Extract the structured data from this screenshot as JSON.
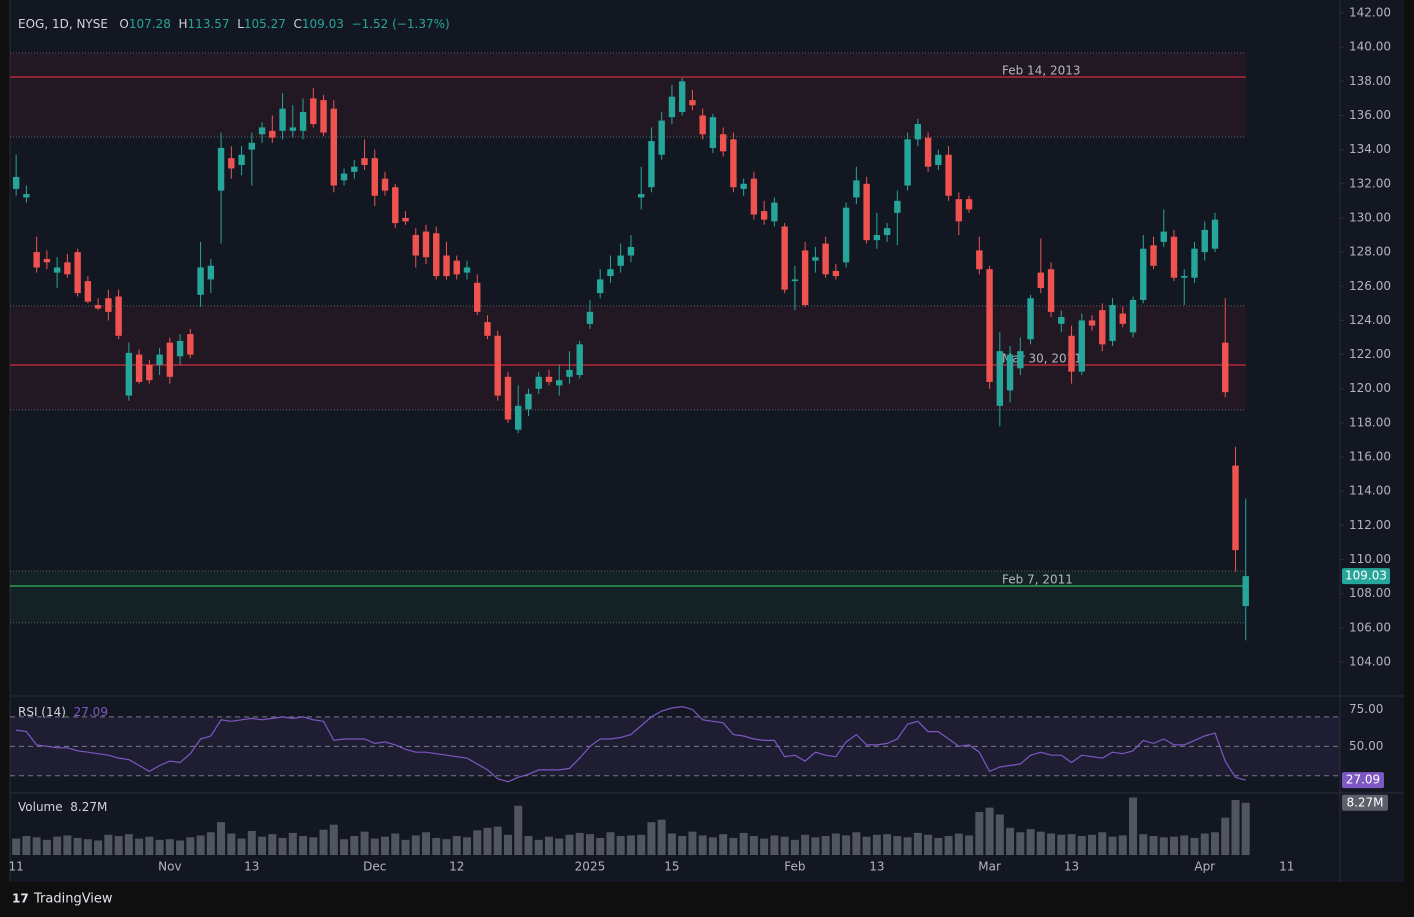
{
  "brand": "TradingView",
  "chart_data": [
    {
      "type": "candlestick",
      "title": "EOG, 1D, NYSE",
      "ohlc_labels": [
        "O",
        "H",
        "L",
        "C"
      ],
      "change": "−1.52 (−1.37%)",
      "up_color": "#26a69a",
      "down_color": "#ef5350",
      "grid": false,
      "xlim": [
        -0.6,
        129.2
      ],
      "xticks": [
        {
          "value": 0,
          "label": "11"
        },
        {
          "value": 15,
          "label": "Nov"
        },
        {
          "value": 23,
          "label": "13"
        },
        {
          "value": 35,
          "label": "Dec"
        },
        {
          "value": 43,
          "label": "12"
        },
        {
          "value": 56,
          "label": "2025"
        },
        {
          "value": 64,
          "label": "15"
        },
        {
          "value": 76,
          "label": "Feb"
        },
        {
          "value": 84,
          "label": "13"
        },
        {
          "value": 95,
          "label": "Mar"
        },
        {
          "value": 103,
          "label": "13"
        },
        {
          "value": 116,
          "label": "Apr"
        },
        {
          "value": 124,
          "label": "11"
        }
      ],
      "ylim": [
        102.07,
        142.76
      ],
      "yticks": [
        {
          "value": 104,
          "label": "104.00"
        },
        {
          "value": 106,
          "label": "106.00"
        },
        {
          "value": 108,
          "label": "108.00"
        },
        {
          "value": 110,
          "label": "110.00"
        },
        {
          "value": 112,
          "label": "112.00"
        },
        {
          "value": 114,
          "label": "114.00"
        },
        {
          "value": 116,
          "label": "116.00"
        },
        {
          "value": 118,
          "label": "118.00"
        },
        {
          "value": 120,
          "label": "120.00"
        },
        {
          "value": 122,
          "label": "122.00"
        },
        {
          "value": 124,
          "label": "124.00"
        },
        {
          "value": 126,
          "label": "126.00"
        },
        {
          "value": 128,
          "label": "128.00"
        },
        {
          "value": 130,
          "label": "130.00"
        },
        {
          "value": 132,
          "label": "132.00"
        },
        {
          "value": 134,
          "label": "134.00"
        },
        {
          "value": 136,
          "label": "136.00"
        },
        {
          "value": 138,
          "label": "138.00"
        },
        {
          "value": 140,
          "label": "140.00"
        },
        {
          "value": 142,
          "label": "142.00"
        }
      ],
      "levels": [
        {
          "label": "Feb 14, 2013",
          "value": 138.25,
          "zone": [
            134.74,
            139.66
          ],
          "color": "#b2283a"
        },
        {
          "label": "Mar 30, 2011",
          "value": 121.39,
          "zone": [
            118.76,
            124.85
          ],
          "color": "#b2283a"
        },
        {
          "label": "Feb 7, 2011",
          "value": 108.45,
          "zone": [
            106.29,
            109.33
          ],
          "color": "#2e9e4f"
        }
      ],
      "open": [
        131.7,
        131.2,
        128.0,
        127.6,
        126.8,
        127.4,
        128.0,
        126.3,
        124.9,
        125.3,
        125.4,
        119.6,
        122.0,
        121.4,
        121.4,
        122.7,
        121.9,
        123.2,
        125.5,
        126.4,
        131.6,
        133.5,
        133.1,
        134.0,
        134.9,
        135.1,
        135.1,
        135.1,
        135.1,
        137.0,
        136.9,
        136.4,
        132.2,
        132.7,
        133.5,
        133.5,
        132.3,
        131.8,
        130.0,
        129.0,
        129.2,
        129.1,
        127.8,
        127.5,
        126.8,
        126.2,
        123.9,
        123.1,
        120.7,
        117.6,
        118.8,
        120.0,
        120.7,
        120.2,
        120.7,
        120.8,
        123.8,
        125.6,
        126.6,
        127.2,
        127.8,
        131.2,
        131.8,
        133.7,
        135.9,
        136.2,
        136.9,
        136.0,
        134.1,
        134.9,
        134.6,
        131.7,
        132.3,
        130.4,
        129.8,
        129.5,
        126.3,
        128.1,
        127.5,
        128.5,
        126.9,
        127.4,
        131.2,
        132.0,
        128.7,
        129.0,
        130.3,
        131.9,
        134.6,
        134.7,
        133.1,
        133.7,
        131.1,
        131.1,
        128.1,
        127.0,
        119.0,
        119.9,
        121.2,
        122.9,
        126.8,
        127.0,
        123.8,
        123.1,
        121.0,
        124.0,
        124.6,
        122.8,
        124.4,
        123.3,
        125.2,
        128.4,
        128.6,
        128.9,
        126.5,
        126.5,
        128.0,
        128.2,
        122.7,
        115.5,
        107.28
      ],
      "high": [
        133.7,
        131.9,
        128.9,
        128.1,
        127.7,
        127.9,
        128.2,
        126.6,
        125.3,
        125.8,
        125.8,
        122.7,
        122.3,
        121.7,
        122.4,
        123.0,
        123.2,
        123.5,
        128.6,
        127.6,
        135.0,
        134.2,
        134.2,
        135.0,
        135.6,
        136.0,
        137.3,
        136.6,
        137.0,
        137.6,
        137.2,
        136.9,
        132.9,
        133.4,
        134.6,
        134.0,
        132.7,
        132.0,
        130.4,
        129.4,
        129.6,
        129.5,
        128.6,
        127.8,
        127.5,
        126.7,
        124.3,
        123.4,
        121.0,
        120.2,
        120.0,
        121.0,
        121.1,
        121.4,
        122.2,
        122.8,
        125.2,
        127.0,
        127.8,
        128.5,
        129.0,
        133.0,
        135.3,
        136.2,
        137.8,
        138.2,
        137.5,
        136.4,
        136.1,
        135.3,
        135.0,
        132.3,
        132.7,
        131.0,
        131.2,
        129.7,
        127.2,
        128.6,
        128.3,
        128.9,
        127.3,
        130.9,
        133.0,
        132.4,
        130.3,
        129.7,
        131.6,
        135.0,
        135.8,
        135.0,
        134.0,
        134.2,
        131.5,
        131.3,
        128.9,
        127.2,
        123.3,
        122.5,
        123.0,
        125.5,
        128.8,
        127.4,
        124.6,
        123.7,
        124.4,
        124.3,
        125.0,
        125.3,
        124.8,
        125.4,
        129.0,
        128.9,
        130.5,
        129.3,
        127.0,
        128.6,
        129.8,
        130.3,
        125.3,
        116.6,
        113.57
      ],
      "low": [
        131.3,
        130.9,
        126.8,
        127.0,
        125.9,
        126.5,
        125.4,
        125.0,
        124.6,
        124.0,
        122.9,
        119.3,
        120.3,
        120.3,
        120.8,
        120.3,
        121.4,
        121.8,
        124.8,
        125.6,
        128.5,
        132.3,
        132.5,
        131.9,
        134.4,
        134.4,
        134.6,
        134.7,
        134.6,
        135.3,
        134.8,
        131.5,
        131.9,
        132.3,
        132.8,
        130.7,
        131.3,
        129.4,
        129.6,
        127.1,
        127.3,
        126.4,
        126.4,
        126.4,
        126.4,
        124.3,
        122.9,
        119.3,
        118.0,
        117.4,
        118.4,
        119.7,
        120.2,
        119.6,
        120.3,
        120.6,
        123.5,
        125.3,
        126.2,
        126.8,
        127.4,
        130.5,
        131.5,
        133.4,
        135.5,
        136.0,
        136.3,
        134.6,
        133.8,
        133.6,
        131.5,
        131.3,
        129.9,
        129.6,
        129.5,
        125.6,
        124.6,
        124.8,
        126.8,
        126.5,
        126.4,
        127.1,
        130.8,
        128.5,
        128.2,
        128.6,
        128.4,
        131.6,
        134.2,
        132.7,
        132.8,
        131.0,
        129.0,
        130.3,
        126.7,
        120.0,
        117.8,
        119.2,
        120.8,
        122.6,
        125.6,
        124.2,
        123.3,
        120.3,
        120.8,
        123.4,
        122.2,
        122.5,
        123.6,
        123.0,
        125.0,
        127.0,
        128.3,
        126.3,
        124.9,
        126.2,
        127.5,
        128.0,
        119.5,
        109.3,
        105.27
      ],
      "close": [
        132.4,
        131.4,
        127.1,
        127.4,
        127.1,
        126.7,
        125.6,
        125.1,
        124.7,
        124.5,
        123.1,
        122.1,
        120.4,
        120.5,
        122.0,
        120.7,
        122.8,
        122.0,
        127.1,
        127.2,
        134.1,
        132.9,
        133.7,
        134.4,
        135.3,
        134.7,
        136.4,
        135.3,
        136.2,
        135.5,
        135.0,
        131.9,
        132.6,
        133.0,
        133.1,
        131.3,
        131.6,
        129.7,
        129.8,
        127.8,
        127.7,
        126.6,
        126.6,
        126.7,
        127.1,
        124.5,
        123.1,
        119.6,
        118.2,
        119.0,
        119.7,
        120.7,
        120.4,
        120.5,
        121.1,
        122.6,
        124.5,
        126.4,
        127.0,
        127.8,
        128.3,
        131.4,
        134.5,
        135.7,
        137.1,
        138.0,
        136.6,
        134.9,
        135.9,
        133.9,
        131.8,
        132.0,
        130.2,
        129.9,
        130.9,
        125.8,
        126.4,
        124.9,
        127.7,
        126.7,
        126.6,
        130.6,
        132.2,
        128.7,
        129.0,
        129.4,
        131.0,
        134.6,
        135.5,
        133.0,
        133.7,
        131.3,
        129.8,
        130.5,
        127.0,
        120.4,
        122.2,
        122.0,
        122.2,
        125.3,
        125.9,
        124.5,
        124.2,
        121.0,
        124.0,
        123.7,
        122.6,
        124.9,
        123.8,
        125.2,
        128.2,
        127.2,
        129.2,
        126.5,
        126.6,
        128.2,
        129.3,
        129.9,
        119.8,
        110.55,
        109.03
      ]
    },
    {
      "type": "line",
      "title": "RSI (14)",
      "color": "#7e57c2",
      "ylim": [
        19,
        83.5
      ],
      "yticks": [
        {
          "value": 75,
          "label": "75.00"
        },
        {
          "value": 50,
          "label": "50.00"
        }
      ],
      "levels": [
        70,
        50,
        30
      ],
      "values": [
        61,
        60,
        51,
        50,
        49,
        49,
        47,
        46,
        45,
        44,
        42,
        41,
        37,
        33,
        37,
        40,
        39,
        45,
        55,
        57,
        68,
        67,
        68,
        69,
        68,
        69,
        70,
        69,
        70,
        68,
        67,
        54,
        55,
        55,
        55,
        52,
        53,
        51,
        48,
        46,
        46,
        45,
        44,
        43,
        42,
        38,
        34,
        28,
        26,
        29,
        31,
        34,
        34,
        34,
        35,
        42,
        50,
        55,
        55,
        56,
        58,
        64,
        70,
        74,
        76,
        77,
        75,
        68,
        67,
        66,
        58,
        57,
        55,
        54,
        54,
        43,
        44,
        40,
        46,
        44,
        43,
        53,
        58,
        51,
        51,
        52,
        55,
        65,
        67,
        60,
        60,
        55,
        50,
        51,
        46,
        33,
        36,
        37,
        38,
        44,
        46,
        44,
        44,
        39,
        44,
        43,
        42,
        46,
        45,
        47,
        54,
        52,
        55,
        51,
        51,
        54,
        57,
        59,
        40,
        29,
        27.09
      ]
    },
    {
      "type": "bar",
      "title": "Volume",
      "color": "#5d606b",
      "ylim": [
        0,
        9.5
      ],
      "values": [
        2.6,
        3.0,
        2.8,
        2.4,
        2.9,
        3.1,
        2.7,
        2.5,
        2.3,
        3.2,
        3.0,
        3.3,
        2.6,
        2.9,
        2.4,
        2.5,
        2.3,
        2.8,
        3.1,
        3.6,
        5.2,
        3.4,
        2.6,
        3.8,
        2.9,
        3.3,
        2.7,
        3.5,
        3.0,
        2.8,
        4.0,
        4.8,
        2.5,
        3.0,
        3.7,
        2.6,
        2.9,
        3.4,
        2.4,
        3.1,
        3.6,
        2.7,
        2.5,
        3.0,
        2.8,
        3.9,
        4.3,
        4.5,
        3.2,
        7.8,
        3.0,
        2.4,
        2.9,
        2.6,
        3.2,
        3.5,
        3.3,
        2.7,
        3.6,
        3.0,
        3.1,
        3.2,
        5.2,
        5.6,
        3.4,
        3.0,
        3.7,
        3.1,
        2.8,
        3.3,
        2.7,
        3.5,
        3.0,
        2.6,
        3.1,
        2.9,
        2.4,
        3.2,
        2.8,
        3.0,
        3.4,
        3.1,
        3.6,
        2.9,
        3.2,
        3.3,
        3.0,
        2.8,
        3.5,
        3.2,
        2.7,
        3.0,
        3.4,
        3.1,
        6.8,
        7.5,
        6.4,
        4.3,
        3.6,
        4.1,
        3.7,
        3.4,
        3.2,
        3.3,
        3.0,
        3.2,
        3.6,
        2.9,
        3.1,
        9.1,
        3.3,
        3.0,
        2.8,
        2.9,
        3.1,
        2.7,
        3.4,
        3.6,
        5.9,
        8.7,
        8.27
      ],
      "value_labels": [
        null,
        null,
        null,
        null,
        null,
        null,
        null,
        null,
        null,
        null,
        null,
        null,
        null,
        null,
        null,
        null,
        null,
        null,
        null,
        null,
        null,
        null,
        null,
        null,
        null,
        null,
        null,
        null,
        null,
        null,
        null,
        null,
        null,
        null,
        null,
        null,
        null,
        null,
        null,
        null,
        null,
        null,
        null,
        null,
        null,
        null,
        null,
        null,
        null,
        null,
        null,
        null,
        null,
        null,
        null,
        null,
        null,
        null,
        null,
        null,
        null,
        null,
        null,
        null,
        null,
        null,
        null,
        null,
        null,
        null,
        null,
        null,
        null,
        null,
        null,
        null,
        null,
        null,
        null,
        null,
        null,
        null,
        null,
        null,
        null,
        null,
        null,
        null,
        null,
        null,
        null,
        null,
        null,
        null,
        null,
        null,
        null,
        null,
        null,
        null,
        null,
        null,
        null,
        null,
        null,
        null,
        null,
        null,
        null,
        null,
        null,
        null,
        null,
        null,
        null,
        null,
        null,
        null,
        null,
        null,
        "8.27M"
      ]
    }
  ]
}
